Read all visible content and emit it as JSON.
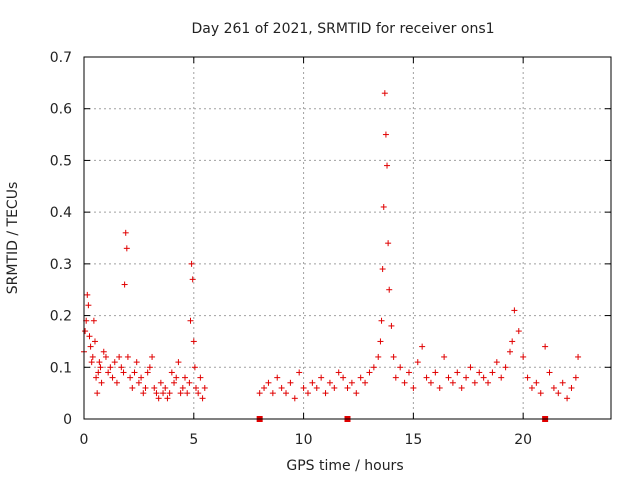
{
  "chart_data": {
    "type": "scatter",
    "title": "Day 261 of 2021, SRMTID for receiver ons1",
    "xlabel": "GPS time / hours",
    "ylabel": "SRMTID / TECUs",
    "xlim": [
      0,
      24
    ],
    "ylim": [
      0,
      0.7
    ],
    "xticks": [
      0,
      5,
      10,
      15,
      20
    ],
    "yticks": [
      0,
      0.1,
      0.2,
      0.3,
      0.4,
      0.5,
      0.6,
      0.7
    ],
    "xtick_labels": [
      "0",
      "5",
      "10",
      "15",
      "20"
    ],
    "ytick_labels": [
      "0",
      "0.1",
      "0.2",
      "0.3",
      "0.4",
      "0.5",
      "0.6",
      "0.7"
    ],
    "grid": true,
    "marker": "+",
    "color": "#e00000",
    "series": [
      {
        "name": "ons1",
        "x": [
          0.0,
          0.05,
          0.1,
          0.15,
          0.2,
          0.25,
          0.3,
          0.35,
          0.4,
          0.45,
          0.5,
          0.55,
          0.6,
          0.65,
          0.7,
          0.75,
          0.8,
          0.9,
          1.0,
          1.1,
          1.2,
          1.3,
          1.4,
          1.5,
          1.6,
          1.7,
          1.8,
          1.85,
          1.9,
          1.95,
          2.0,
          2.1,
          2.2,
          2.3,
          2.4,
          2.5,
          2.6,
          2.7,
          2.8,
          2.9,
          3.0,
          3.1,
          3.2,
          3.3,
          3.4,
          3.5,
          3.6,
          3.7,
          3.8,
          3.9,
          4.0,
          4.1,
          4.2,
          4.3,
          4.4,
          4.5,
          4.6,
          4.7,
          4.8,
          4.85,
          4.9,
          4.95,
          5.0,
          5.05,
          5.1,
          5.2,
          5.3,
          5.4,
          5.5,
          8.0,
          8.2,
          8.4,
          8.6,
          8.8,
          9.0,
          9.2,
          9.4,
          9.6,
          9.8,
          10.0,
          10.2,
          10.4,
          10.6,
          10.8,
          11.0,
          11.2,
          11.4,
          11.6,
          11.8,
          12.0,
          12.2,
          12.4,
          12.6,
          12.8,
          13.0,
          13.2,
          13.4,
          13.5,
          13.55,
          13.6,
          13.65,
          13.7,
          13.75,
          13.8,
          13.85,
          13.9,
          14.0,
          14.1,
          14.2,
          14.4,
          14.6,
          14.8,
          15.0,
          15.2,
          15.4,
          15.6,
          15.8,
          16.0,
          16.2,
          16.4,
          16.6,
          16.8,
          17.0,
          17.2,
          17.4,
          17.6,
          17.8,
          18.0,
          18.2,
          18.4,
          18.6,
          18.8,
          19.0,
          19.2,
          19.4,
          19.5,
          19.6,
          19.8,
          20.0,
          20.2,
          20.4,
          20.6,
          20.8,
          21.0,
          21.2,
          21.4,
          21.6,
          21.8,
          22.0,
          22.2,
          22.4,
          22.5
        ],
        "y": [
          0.13,
          0.17,
          0.19,
          0.24,
          0.22,
          0.16,
          0.14,
          0.11,
          0.12,
          0.19,
          0.15,
          0.08,
          0.05,
          0.09,
          0.11,
          0.1,
          0.07,
          0.13,
          0.12,
          0.09,
          0.1,
          0.08,
          0.11,
          0.07,
          0.12,
          0.1,
          0.09,
          0.26,
          0.36,
          0.33,
          0.12,
          0.08,
          0.06,
          0.09,
          0.11,
          0.07,
          0.08,
          0.05,
          0.06,
          0.09,
          0.1,
          0.12,
          0.06,
          0.05,
          0.04,
          0.07,
          0.05,
          0.06,
          0.04,
          0.05,
          0.09,
          0.07,
          0.08,
          0.11,
          0.05,
          0.06,
          0.08,
          0.05,
          0.07,
          0.19,
          0.3,
          0.27,
          0.15,
          0.1,
          0.06,
          0.05,
          0.08,
          0.04,
          0.06,
          0.05,
          0.06,
          0.07,
          0.05,
          0.08,
          0.06,
          0.05,
          0.07,
          0.04,
          0.09,
          0.06,
          0.05,
          0.07,
          0.06,
          0.08,
          0.05,
          0.07,
          0.06,
          0.09,
          0.08,
          0.06,
          0.07,
          0.05,
          0.08,
          0.07,
          0.09,
          0.1,
          0.12,
          0.15,
          0.19,
          0.29,
          0.41,
          0.63,
          0.55,
          0.49,
          0.34,
          0.25,
          0.18,
          0.12,
          0.08,
          0.1,
          0.07,
          0.09,
          0.06,
          0.11,
          0.14,
          0.08,
          0.07,
          0.09,
          0.06,
          0.12,
          0.08,
          0.07,
          0.09,
          0.06,
          0.08,
          0.1,
          0.07,
          0.09,
          0.08,
          0.07,
          0.09,
          0.11,
          0.08,
          0.1,
          0.13,
          0.15,
          0.21,
          0.17,
          0.12,
          0.08,
          0.06,
          0.07,
          0.05,
          0.14,
          0.09,
          0.06,
          0.05,
          0.07,
          0.04,
          0.06,
          0.08,
          0.12
        ],
        "marker_points": [
          8.0,
          12.0,
          21.0
        ]
      }
    ],
    "axis_markers_x": [
      8.0,
      12.0,
      21.0
    ]
  }
}
